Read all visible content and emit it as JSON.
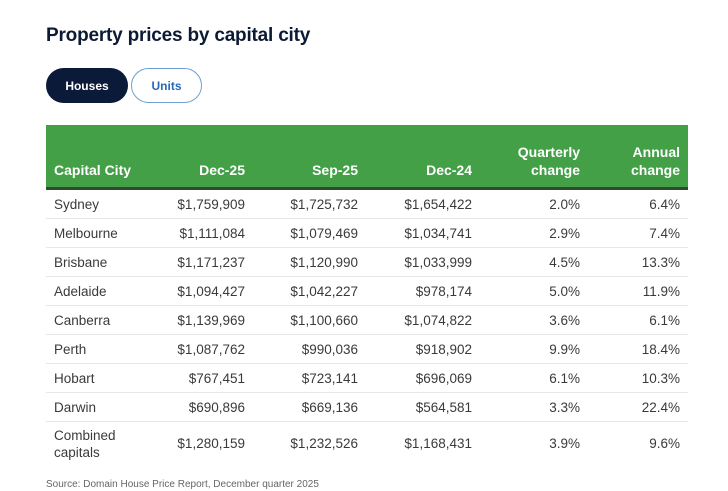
{
  "title": "Property prices by capital city",
  "tabs": [
    {
      "label": "Houses",
      "active": true
    },
    {
      "label": "Units",
      "active": false
    }
  ],
  "table": {
    "headers": [
      "Capital City",
      "Dec-25",
      "Sep-25",
      "Dec-24",
      "Quarterly change",
      "Annual change"
    ],
    "rows": [
      [
        "Sydney",
        "$1,759,909",
        "$1,725,732",
        "$1,654,422",
        "2.0%",
        "6.4%"
      ],
      [
        "Melbourne",
        "$1,111,084",
        "$1,079,469",
        "$1,034,741",
        "2.9%",
        "7.4%"
      ],
      [
        "Brisbane",
        "$1,171,237",
        "$1,120,990",
        "$1,033,999",
        "4.5%",
        "13.3%"
      ],
      [
        "Adelaide",
        "$1,094,427",
        "$1,042,227",
        "$978,174",
        "5.0%",
        "11.9%"
      ],
      [
        "Canberra",
        "$1,139,969",
        "$1,100,660",
        "$1,074,822",
        "3.6%",
        "6.1%"
      ],
      [
        "Perth",
        "$1,087,762",
        "$990,036",
        "$918,902",
        "9.9%",
        "18.4%"
      ],
      [
        "Hobart",
        "$767,451",
        "$723,141",
        "$696,069",
        "6.1%",
        "10.3%"
      ],
      [
        "Darwin",
        "$690,896",
        "$669,136",
        "$564,581",
        "3.3%",
        "22.4%"
      ],
      [
        "Combined capitals",
        "$1,280,159",
        "$1,232,526",
        "$1,168,431",
        "3.9%",
        "9.6%"
      ]
    ]
  },
  "source": "Source: Domain House Price Report, December quarter 2025",
  "colors": {
    "header": "#43a047",
    "active_tab": "#0c1a3a",
    "inactive_tab_text": "#2a68b8"
  }
}
